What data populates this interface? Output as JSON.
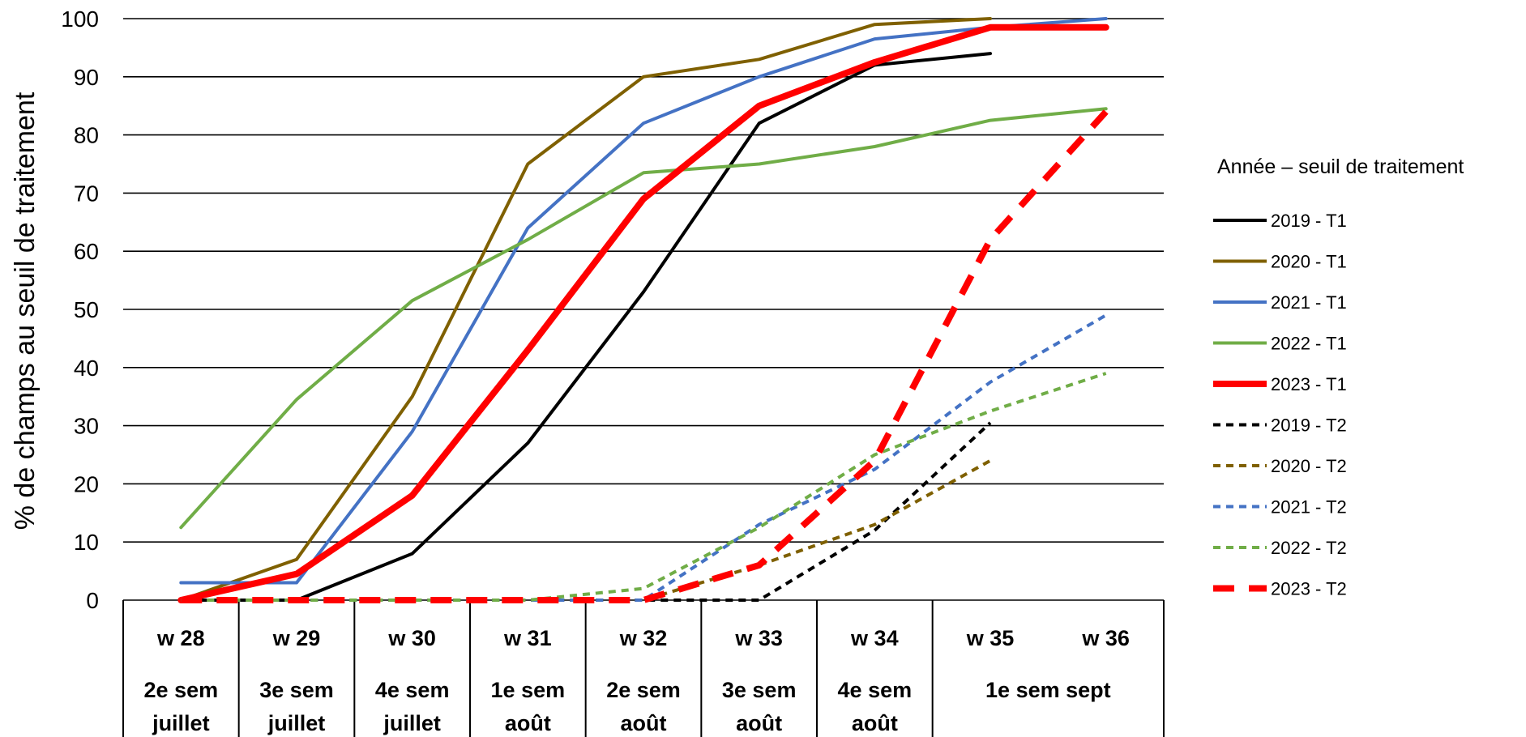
{
  "chart_data": {
    "type": "line",
    "ylabel": "% de champs au seuil de traitement",
    "ylim": [
      0,
      100
    ],
    "yticks": [
      0,
      10,
      20,
      30,
      40,
      50,
      60,
      70,
      80,
      90,
      100
    ],
    "grid": true,
    "legend_title": "Année – seuil de traitement",
    "legend_position": "right",
    "categories": [
      "w 28",
      "w 29",
      "w 30",
      "w 31",
      "w 32",
      "w 33",
      "w 34",
      "w 35",
      "w 36"
    ],
    "period_groups": [
      {
        "label": [
          "2e sem",
          "juillet"
        ],
        "span": 1
      },
      {
        "label": [
          "3e sem",
          "juillet"
        ],
        "span": 1
      },
      {
        "label": [
          "4e sem",
          "juillet"
        ],
        "span": 1
      },
      {
        "label": [
          "1e sem",
          "août"
        ],
        "span": 1
      },
      {
        "label": [
          "2e sem",
          "août"
        ],
        "span": 1
      },
      {
        "label": [
          "3e sem",
          "août"
        ],
        "span": 1
      },
      {
        "label": [
          "4e sem",
          "août"
        ],
        "span": 1
      },
      {
        "label": [
          "1e sem sept"
        ],
        "span": 2
      }
    ],
    "series": [
      {
        "name": "2019 - T1",
        "color": "#000000",
        "dash": "solid",
        "width": 4,
        "values": [
          0,
          0,
          8,
          27,
          53,
          82,
          92,
          94,
          null
        ]
      },
      {
        "name": "2020 - T1",
        "color": "#7F6000",
        "dash": "solid",
        "width": 4,
        "values": [
          0,
          7,
          35,
          75,
          90,
          93,
          99,
          100,
          null
        ]
      },
      {
        "name": "2021 - T1",
        "color": "#4472C4",
        "dash": "solid",
        "width": 4,
        "values": [
          3,
          3,
          29,
          64,
          82,
          90,
          96.5,
          98.5,
          100
        ]
      },
      {
        "name": "2022 - T1",
        "color": "#70AD47",
        "dash": "solid",
        "width": 4,
        "values": [
          12.5,
          34.5,
          51.5,
          62,
          73.5,
          75,
          78,
          82.5,
          84.5
        ]
      },
      {
        "name": "2023 - T1",
        "color": "#FF0000",
        "dash": "solid",
        "width": 8,
        "values": [
          0,
          4.5,
          18,
          43,
          69,
          85,
          92.5,
          98.5,
          98.5
        ]
      },
      {
        "name": "2019 - T2",
        "color": "#000000",
        "dash": "short",
        "width": 4,
        "values": [
          0,
          0,
          0,
          0,
          0,
          0,
          12,
          30.5,
          null
        ]
      },
      {
        "name": "2020 - T2",
        "color": "#7F6000",
        "dash": "short",
        "width": 4,
        "values": [
          0,
          0,
          0,
          0,
          0,
          6,
          13,
          24,
          null
        ]
      },
      {
        "name": "2021 - T2",
        "color": "#4472C4",
        "dash": "short",
        "width": 4,
        "values": [
          0,
          0,
          0,
          0,
          0,
          13,
          22.5,
          37.5,
          49
        ]
      },
      {
        "name": "2022 - T2",
        "color": "#70AD47",
        "dash": "short",
        "width": 4,
        "values": [
          0,
          0,
          0,
          0,
          2,
          12.5,
          25,
          32.5,
          39
        ]
      },
      {
        "name": "2023 - T2",
        "color": "#FF0000",
        "dash": "long",
        "width": 8,
        "values": [
          0,
          0,
          0,
          0,
          0,
          6,
          24,
          62,
          84
        ]
      }
    ]
  }
}
